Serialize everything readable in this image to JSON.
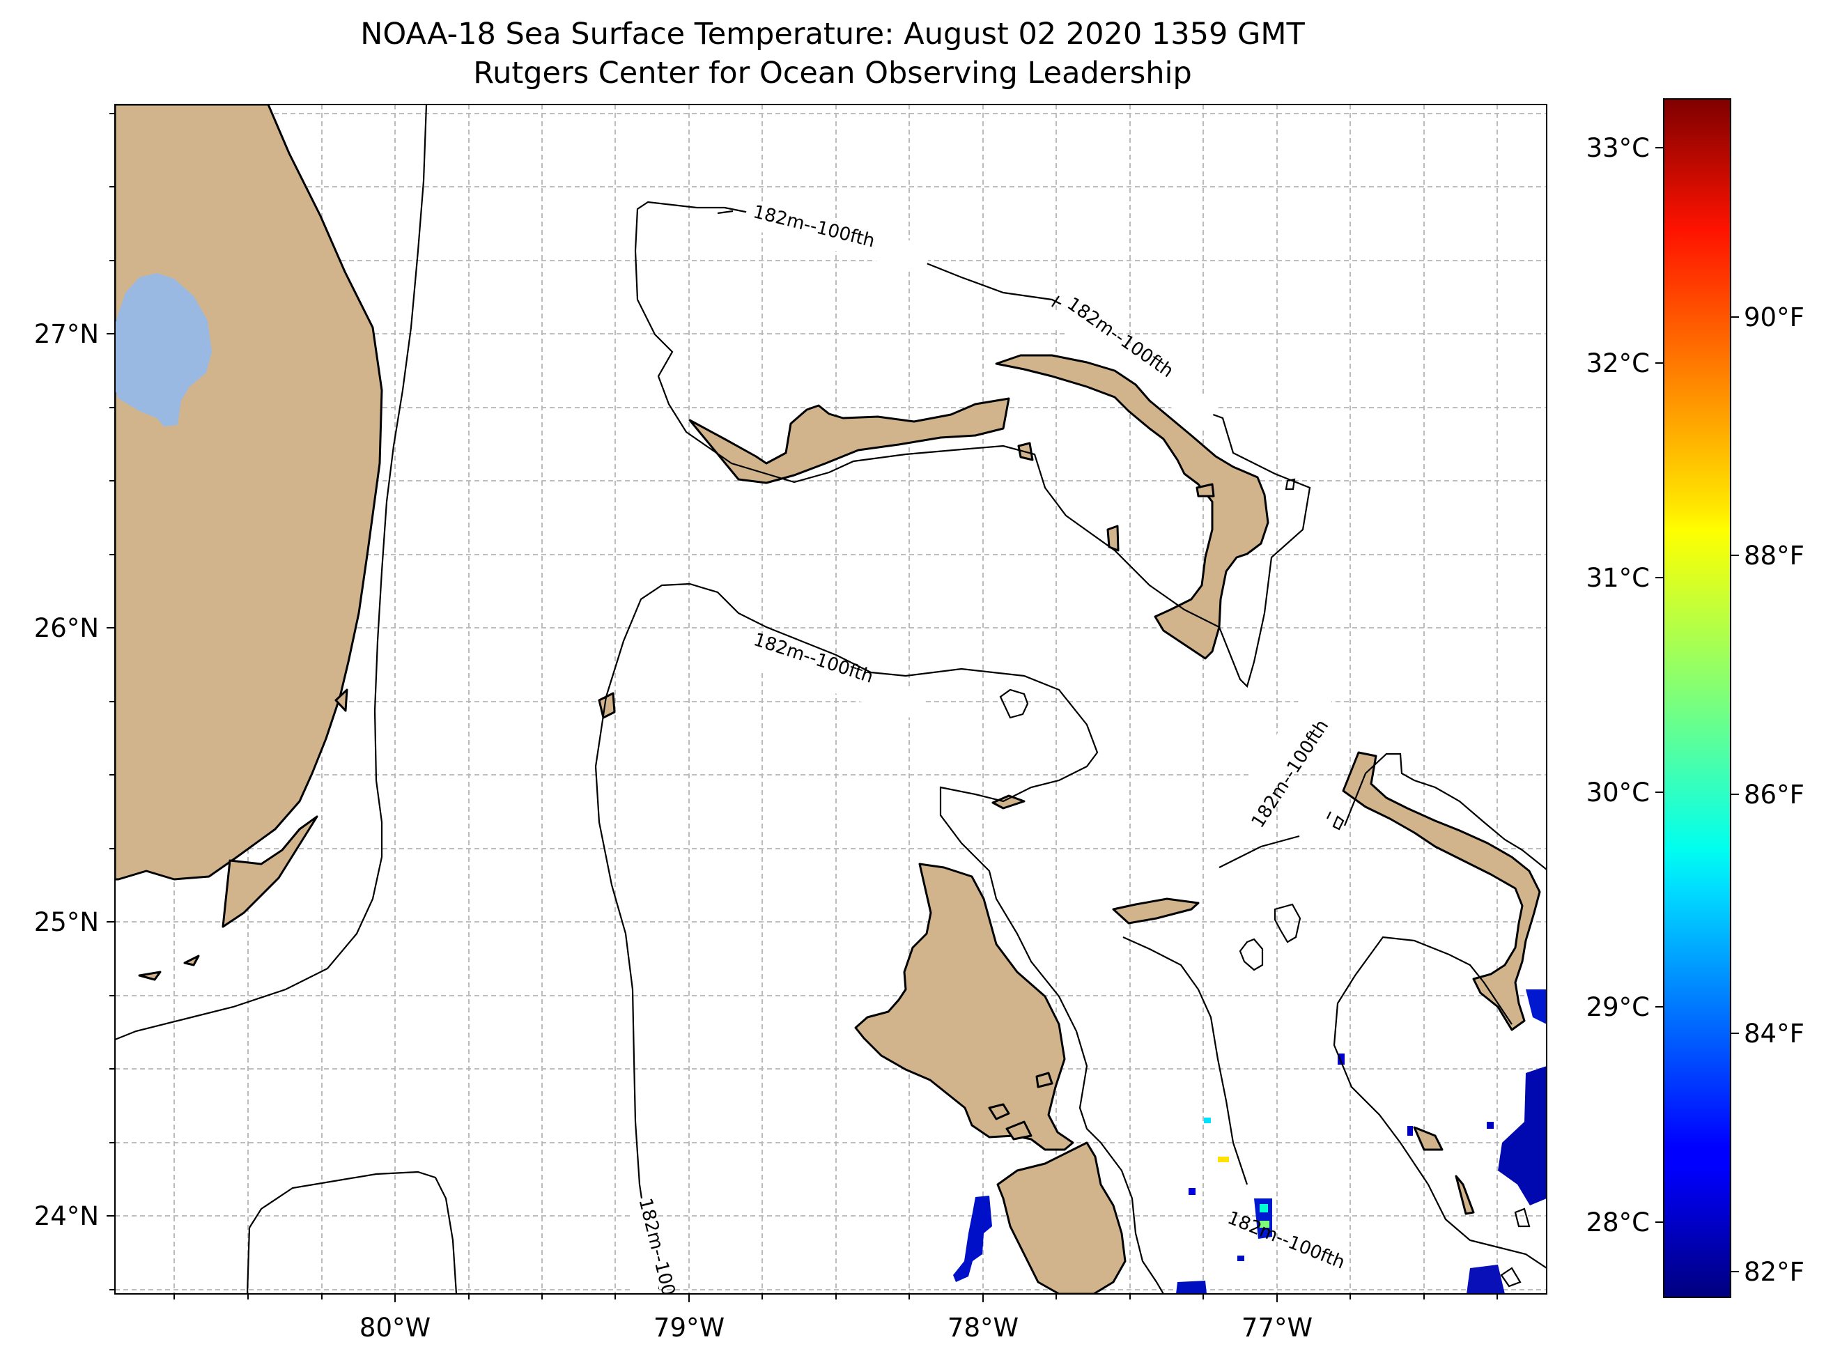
{
  "title": {
    "line1": "NOAA-18 Sea Surface Temperature: August 02 2020 1359 GMT",
    "line2": "Rutgers Center for Ocean Observing Leadership"
  },
  "map": {
    "lon_range": [
      -80.96,
      -76.08
    ],
    "lat_range": [
      23.74,
      27.79
    ],
    "land_color": "#d2b48c",
    "lake_color": "#99b9e3",
    "grid": true,
    "lon_ticks": [
      "80°W",
      "79°W",
      "78°W",
      "77°W"
    ],
    "lat_ticks": [
      "27°N",
      "26°N",
      "25°N",
      "24°N"
    ],
    "isobath_label": "182m--100fth"
  },
  "colorbar": {
    "colormap": "jet",
    "celsius_ticks": [
      "33°C",
      "32°C",
      "31°C",
      "30°C",
      "29°C",
      "28°C"
    ],
    "fahrenheit_ticks": [
      "90°F",
      "88°F",
      "86°F",
      "84°F",
      "82°F"
    ],
    "range_celsius": [
      27.7,
      33.2
    ]
  },
  "chart_data": {
    "type": "heatmap",
    "title": "NOAA-18 Sea Surface Temperature: August 02 2020 1359 GMT",
    "subtitle": "Rutgers Center for Ocean Observing Leadership",
    "variable": "sea surface temperature",
    "units": [
      "°C",
      "°F"
    ],
    "range_celsius": [
      27.7,
      33.2
    ],
    "observed_patches_celsius": [
      {
        "lon": -77.8,
        "lat": 24.05,
        "value": 28.2
      },
      {
        "lon": -76.2,
        "lat": 24.2,
        "value": 28.0
      },
      {
        "lon": -77.05,
        "lat": 23.99,
        "value": 29.8
      },
      {
        "lon": -77.2,
        "lat": 24.19,
        "value": 31.2
      },
      {
        "lon": -77.3,
        "lat": 24.33,
        "value": 30.5
      }
    ]
  }
}
